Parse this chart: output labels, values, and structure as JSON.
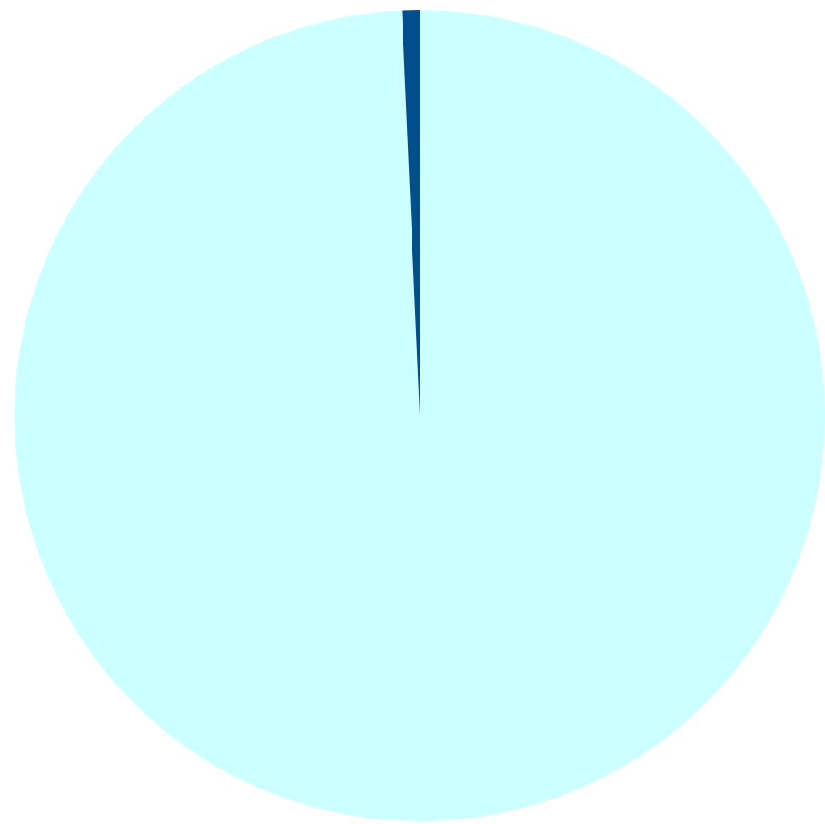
{
  "chart_data": {
    "type": "pie",
    "categories": [
      null,
      null
    ],
    "values": [
      99.3,
      0.7
    ],
    "colors": [
      "#ccffff",
      "#004f8c"
    ],
    "legend": false
  }
}
